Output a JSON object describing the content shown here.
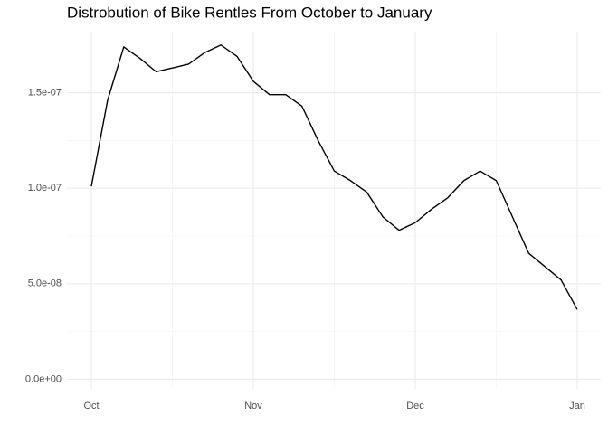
{
  "chart_data": {
    "type": "line",
    "title": "Distrobution of Bike Rentles From October to January",
    "categories": [
      "Oct",
      null,
      null,
      null,
      null,
      null,
      null,
      null,
      null,
      null,
      "Nov",
      null,
      null,
      null,
      null,
      null,
      null,
      null,
      null,
      null,
      "Dec",
      null,
      null,
      null,
      null,
      null,
      null,
      null,
      null,
      null,
      "Jan"
    ],
    "values": [
      1.01e-07,
      1.46e-07,
      1.74e-07,
      1.68e-07,
      1.61e-07,
      1.63e-07,
      1.65e-07,
      1.71e-07,
      1.75e-07,
      1.69e-07,
      1.56e-07,
      1.49e-07,
      1.49e-07,
      1.43e-07,
      1.25e-07,
      1.09e-07,
      1.04e-07,
      9.8e-08,
      8.5e-08,
      7.8e-08,
      8.2e-08,
      8.9e-08,
      9.5e-08,
      1.04e-07,
      1.09e-07,
      1.04e-07,
      8.5e-08,
      6.6e-08,
      5.9e-08,
      5.2e-08,
      3.65e-08
    ],
    "color": "#000000",
    "ylim": [
      -5e-09,
      1.82e-07
    ],
    "yticks": [
      {
        "value": 0,
        "label": "0.0e+00"
      },
      {
        "value": 5e-08,
        "label": "5.0e-08"
      },
      {
        "value": 1e-07,
        "label": "1.0e-07"
      },
      {
        "value": 1.5e-07,
        "label": "1.5e-07"
      }
    ],
    "grid": true
  }
}
